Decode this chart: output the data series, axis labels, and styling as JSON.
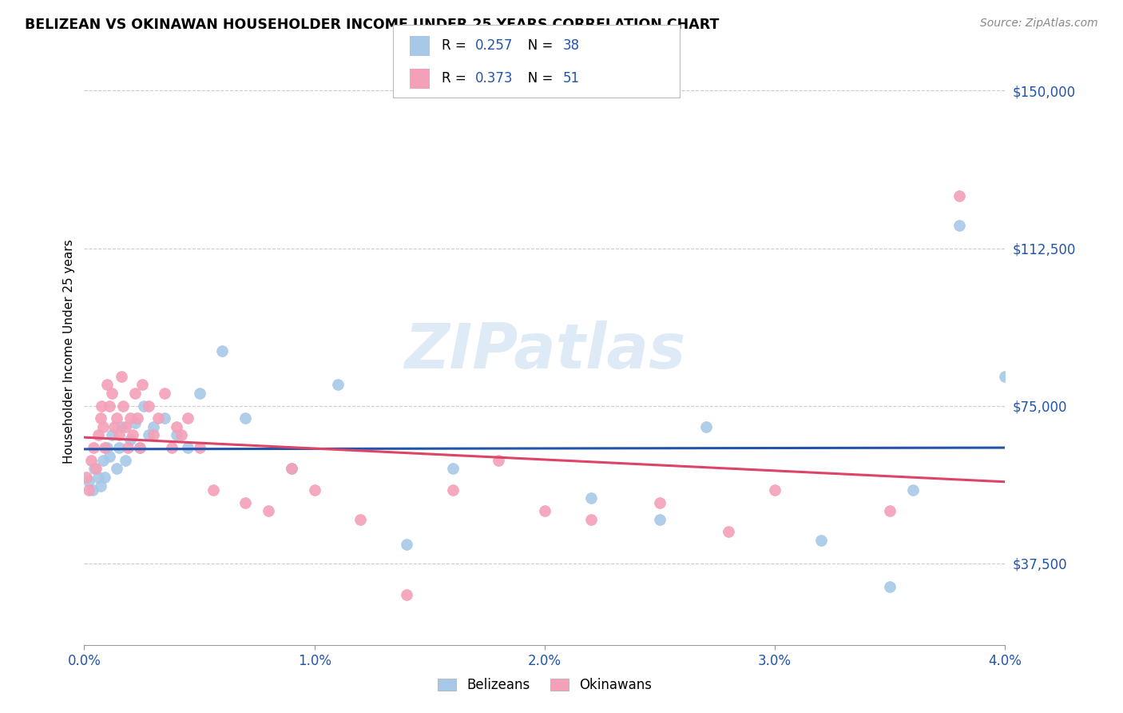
{
  "title": "BELIZEAN VS OKINAWAN HOUSEHOLDER INCOME UNDER 25 YEARS CORRELATION CHART",
  "source": "Source: ZipAtlas.com",
  "ylabel": "Householder Income Under 25 years",
  "xlim": [
    0.0,
    0.04
  ],
  "ylim": [
    18000,
    158000
  ],
  "yticks": [
    37500,
    75000,
    112500,
    150000
  ],
  "ytick_labels": [
    "$37,500",
    "$75,000",
    "$112,500",
    "$150,000"
  ],
  "xticks": [
    0.0,
    0.01,
    0.02,
    0.03,
    0.04
  ],
  "xtick_labels": [
    "0.0%",
    "1.0%",
    "2.0%",
    "3.0%",
    "4.0%"
  ],
  "belizean_color": "#a8c8e8",
  "okinawan_color": "#f4a0b8",
  "belizean_line_color": "#2255aa",
  "okinawan_line_color": "#dd4466",
  "legend_R_belizean": "0.257",
  "legend_N_belizean": "38",
  "legend_R_okinawan": "0.373",
  "legend_N_okinawan": "51",
  "belizean_x": [
    0.0002,
    0.00035,
    0.00045,
    0.0006,
    0.0007,
    0.0008,
    0.0009,
    0.001,
    0.0011,
    0.0012,
    0.0014,
    0.0015,
    0.0016,
    0.0018,
    0.002,
    0.0022,
    0.0024,
    0.0026,
    0.0028,
    0.003,
    0.0035,
    0.004,
    0.0045,
    0.005,
    0.006,
    0.007,
    0.009,
    0.011,
    0.014,
    0.016,
    0.022,
    0.025,
    0.027,
    0.032,
    0.035,
    0.036,
    0.038,
    0.04
  ],
  "belizean_y": [
    57000,
    55000,
    60000,
    58000,
    56000,
    62000,
    58000,
    65000,
    63000,
    68000,
    60000,
    65000,
    70000,
    62000,
    67000,
    71000,
    65000,
    75000,
    68000,
    70000,
    72000,
    68000,
    65000,
    78000,
    88000,
    72000,
    60000,
    80000,
    42000,
    60000,
    53000,
    48000,
    70000,
    43000,
    32000,
    55000,
    118000,
    82000
  ],
  "okinawan_x": [
    0.0001,
    0.0002,
    0.0003,
    0.0004,
    0.0005,
    0.0006,
    0.0007,
    0.00075,
    0.0008,
    0.0009,
    0.001,
    0.0011,
    0.0012,
    0.0013,
    0.0014,
    0.0015,
    0.0016,
    0.0017,
    0.0018,
    0.0019,
    0.002,
    0.0021,
    0.0022,
    0.0023,
    0.0024,
    0.0025,
    0.0028,
    0.003,
    0.0032,
    0.0035,
    0.0038,
    0.004,
    0.0042,
    0.0045,
    0.005,
    0.0056,
    0.007,
    0.008,
    0.009,
    0.01,
    0.012,
    0.014,
    0.016,
    0.018,
    0.02,
    0.022,
    0.025,
    0.028,
    0.03,
    0.035,
    0.038
  ],
  "okinawan_y": [
    58000,
    55000,
    62000,
    65000,
    60000,
    68000,
    72000,
    75000,
    70000,
    65000,
    80000,
    75000,
    78000,
    70000,
    72000,
    68000,
    82000,
    75000,
    70000,
    65000,
    72000,
    68000,
    78000,
    72000,
    65000,
    80000,
    75000,
    68000,
    72000,
    78000,
    65000,
    70000,
    68000,
    72000,
    65000,
    55000,
    52000,
    50000,
    60000,
    55000,
    48000,
    30000,
    55000,
    62000,
    50000,
    48000,
    52000,
    45000,
    55000,
    50000,
    125000
  ]
}
